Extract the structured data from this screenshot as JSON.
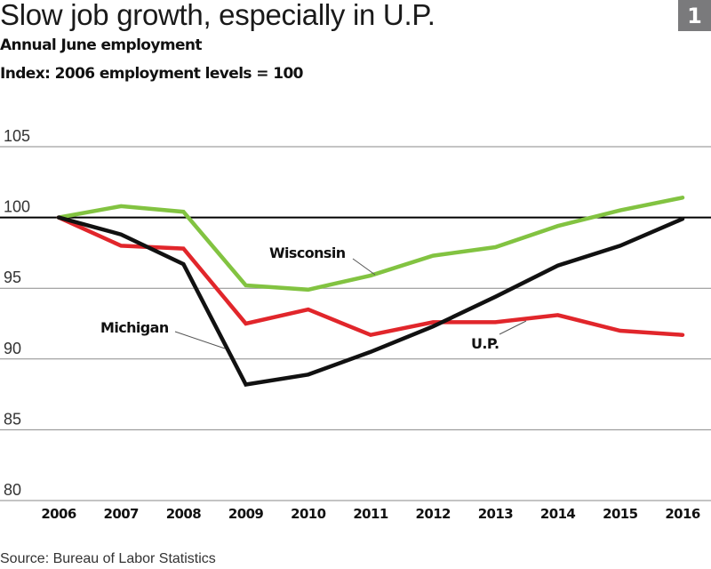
{
  "header": {
    "title": "Slow job growth, especially in U.P.",
    "subtitle": "Annual June employment",
    "index_note": "Index: 2006 employment levels = 100",
    "badge": "1"
  },
  "footer": {
    "source": "Source: Bureau of Labor Statistics"
  },
  "colors": {
    "wisconsin": "#82c341",
    "michigan": "#111111",
    "up": "#e1262b",
    "badge": "#7a7a7c",
    "grid": "#8a8a8a",
    "baseline": "#000000"
  },
  "chart_data": {
    "type": "line",
    "title": "Slow job growth, especially in U.P.",
    "subtitle": "Annual June employment; Index: 2006 employment levels = 100",
    "xlabel": "",
    "ylabel": "",
    "categories": [
      "2006",
      "2007",
      "2008",
      "2009",
      "2010",
      "2011",
      "2012",
      "2013",
      "2014",
      "2015",
      "2016"
    ],
    "yticks": [
      "80",
      "85",
      "90",
      "95",
      "100",
      "105"
    ],
    "ytick_values": [
      80,
      85,
      90,
      95,
      100,
      105
    ],
    "ylim": [
      80,
      105
    ],
    "reference_line": 100,
    "grid": true,
    "series": [
      {
        "name": "Wisconsin",
        "color": "#82c341",
        "values": [
          100,
          100.8,
          100.4,
          95.2,
          94.9,
          95.9,
          97.3,
          97.9,
          99.4,
          100.5,
          101.4
        ]
      },
      {
        "name": "U.P.",
        "color": "#e1262b",
        "values": [
          100,
          98.0,
          97.8,
          92.5,
          93.5,
          91.7,
          92.6,
          92.6,
          93.1,
          92.0,
          91.7
        ]
      },
      {
        "name": "Michigan",
        "color": "#111111",
        "values": [
          100,
          98.8,
          96.7,
          88.2,
          88.9,
          90.5,
          92.3,
          94.4,
          96.6,
          98.0,
          99.9
        ]
      }
    ],
    "annotations": [
      "Wisconsin",
      "Michigan",
      "U.P."
    ]
  }
}
